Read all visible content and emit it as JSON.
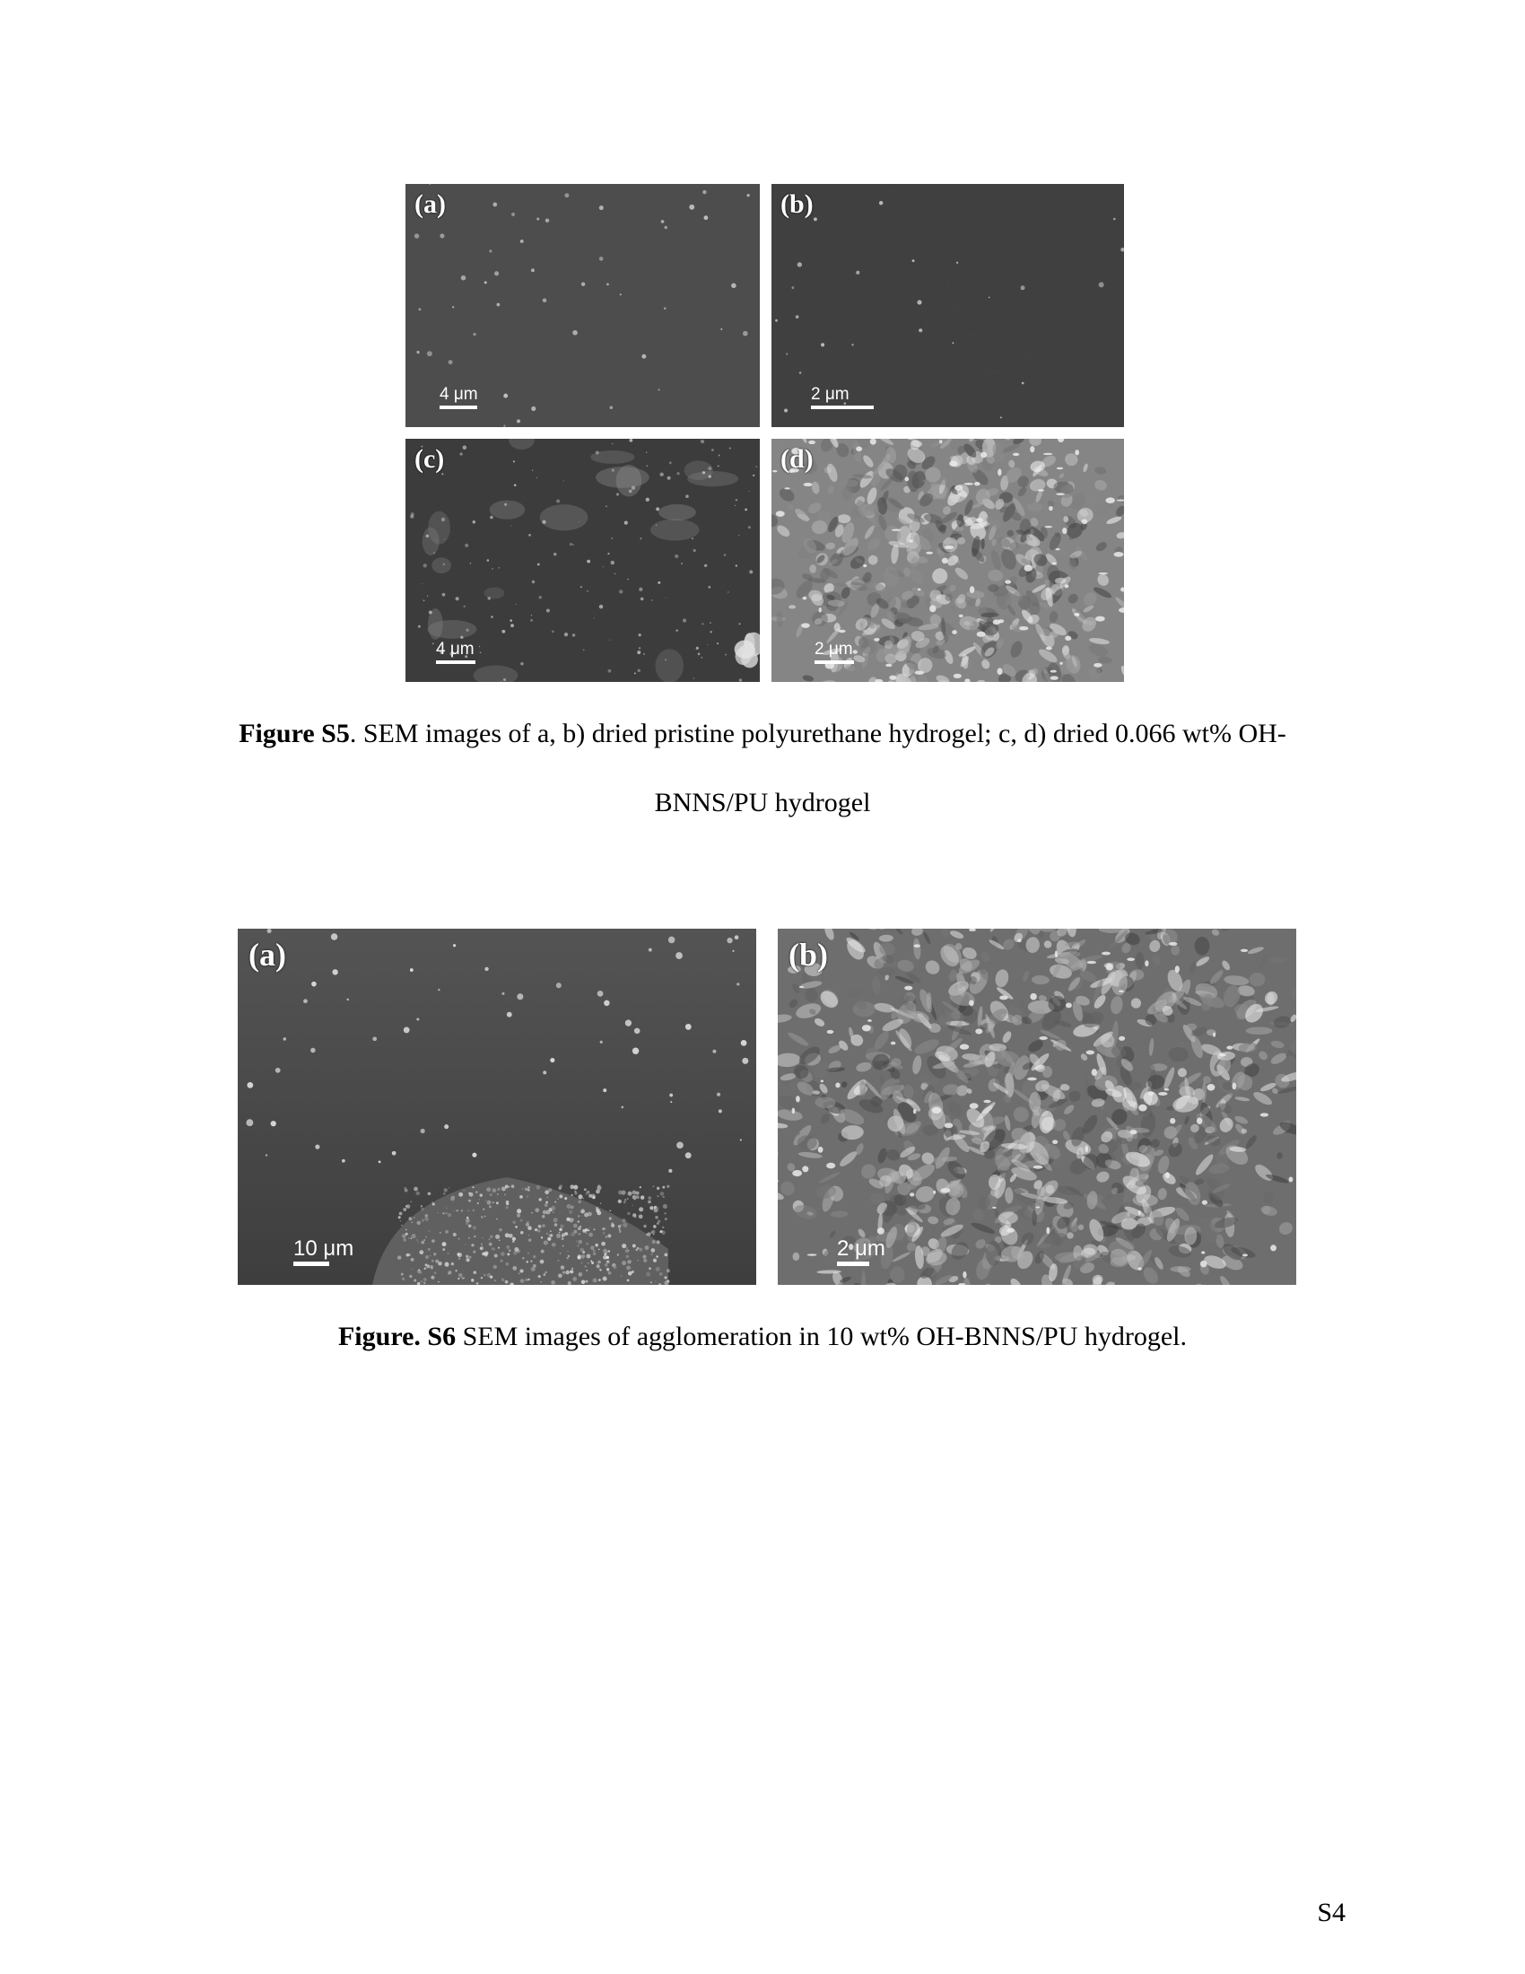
{
  "figure_s5": {
    "panels": [
      {
        "label": "(a)",
        "scale": "4 μm",
        "tone": "#4d4d4d"
      },
      {
        "label": "(b)",
        "scale": "2 μm",
        "tone": "#404040"
      },
      {
        "label": "(c)",
        "scale": "4 μm",
        "tone": "#3c3c3c"
      },
      {
        "label": "(d)",
        "scale": "2 μm",
        "tone": "#858585"
      }
    ],
    "caption": {
      "bold": "Figure S5",
      "text_line1": ". SEM images of a, b) dried pristine polyurethane hydrogel; c, d) dried 0.066 wt% OH-",
      "text_line2": "BNNS/PU hydrogel"
    }
  },
  "figure_s6": {
    "panels": [
      {
        "label": "(a)",
        "scale": "10 μm",
        "tone": "#4a4a4a"
      },
      {
        "label": "(b)",
        "scale": "2 μm",
        "tone": "#6e6e6e"
      }
    ],
    "caption": {
      "bold": "Figure. S6",
      "text": " SEM images of agglomeration in 10 wt% OH-BNNS/PU hydrogel."
    }
  },
  "page_number": "S4"
}
